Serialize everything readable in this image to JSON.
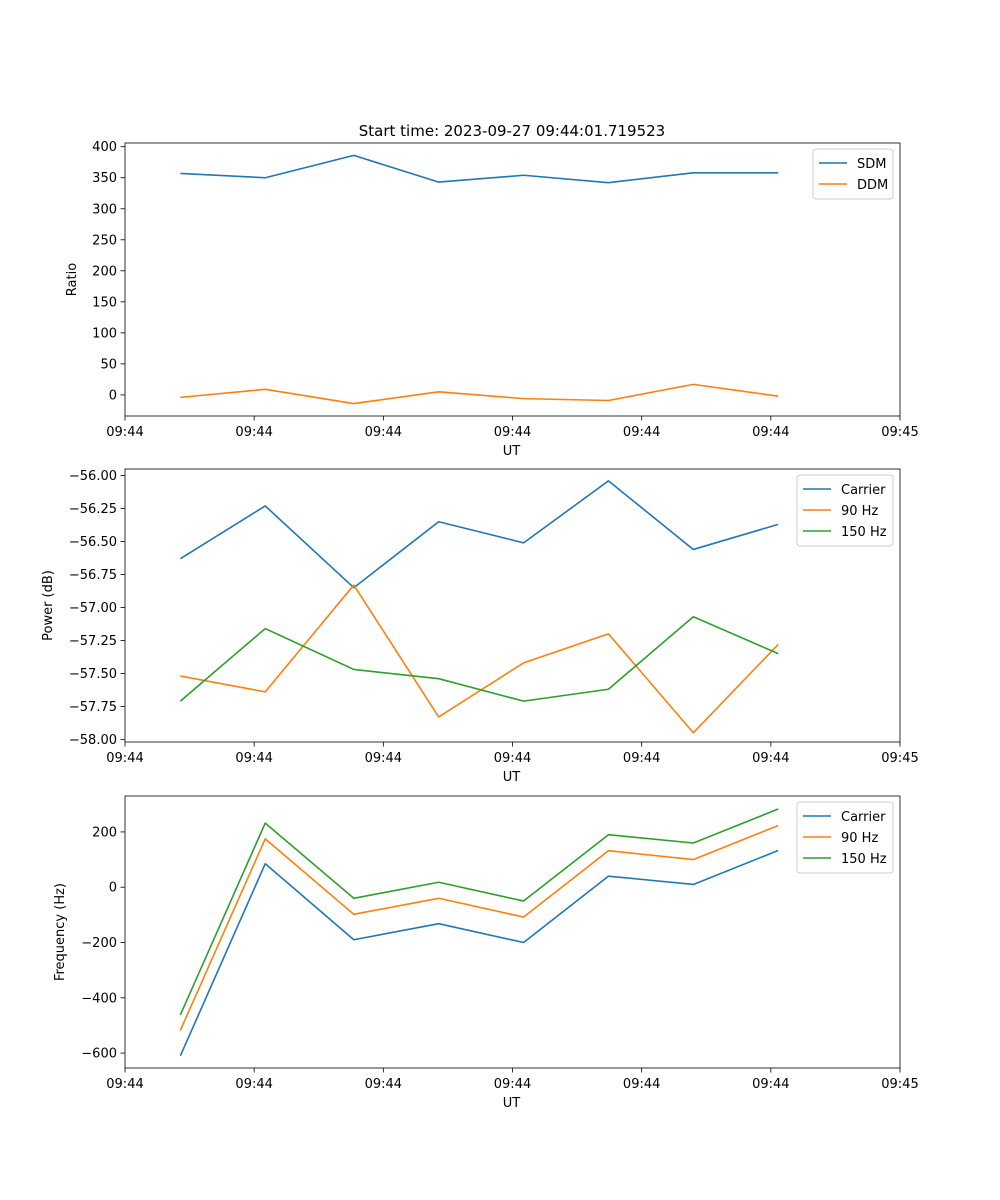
{
  "figure_title": "Start time: 2023-09-27 09:44:01.719523",
  "chart_data": [
    {
      "type": "line",
      "xlabel": "UT",
      "ylabel": "Ratio",
      "x": [
        0.75,
        1.9,
        3.1,
        4.25,
        5.4,
        6.55,
        7.7,
        8.85
      ],
      "xlim": [
        0,
        10.5
      ],
      "x_ticks": [
        0,
        1.75,
        3.5,
        5.25,
        7.0,
        8.75,
        10.5
      ],
      "x_tick_labels": [
        "09:44",
        "09:44",
        "09:44",
        "09:44",
        "09:44",
        "09:44",
        "09:45"
      ],
      "ylim": [
        -34,
        406
      ],
      "y_ticks": [
        0,
        50,
        100,
        150,
        200,
        250,
        300,
        350,
        400
      ],
      "legend_position": "top-right",
      "series": [
        {
          "name": "SDM",
          "color": "#1f77b4",
          "values": [
            357,
            350,
            386,
            343,
            354,
            342,
            358,
            358
          ]
        },
        {
          "name": "DDM",
          "color": "#ff7f0e",
          "values": [
            -4,
            9,
            -14,
            5,
            -6,
            -9,
            17,
            -2
          ]
        }
      ]
    },
    {
      "type": "line",
      "xlabel": "UT",
      "ylabel": "Power (dB)",
      "x": [
        0.75,
        1.9,
        3.1,
        4.25,
        5.4,
        6.55,
        7.7,
        8.85
      ],
      "xlim": [
        0,
        10.5
      ],
      "x_ticks": [
        0,
        1.75,
        3.5,
        5.25,
        7.0,
        8.75,
        10.5
      ],
      "x_tick_labels": [
        "09:44",
        "09:44",
        "09:44",
        "09:44",
        "09:44",
        "09:44",
        "09:45"
      ],
      "ylim": [
        -58.02,
        -55.95
      ],
      "y_ticks": [
        -58.0,
        -57.75,
        -57.5,
        -57.25,
        -57.0,
        -56.75,
        -56.5,
        -56.25,
        -56.0
      ],
      "y_tick_labels": [
        "−58.00",
        "−57.75",
        "−57.50",
        "−57.25",
        "−57.00",
        "−56.75",
        "−56.50",
        "−56.25",
        "−56.00"
      ],
      "legend_position": "top-right",
      "series": [
        {
          "name": "Carrier",
          "color": "#1f77b4",
          "values": [
            -56.63,
            -56.23,
            -56.85,
            -56.35,
            -56.51,
            -56.04,
            -56.56,
            -56.37
          ]
        },
        {
          "name": "90 Hz",
          "color": "#ff7f0e",
          "values": [
            -57.52,
            -57.64,
            -56.83,
            -57.83,
            -57.42,
            -57.2,
            -57.95,
            -57.28
          ]
        },
        {
          "name": "150 Hz",
          "color": "#2ca02c",
          "values": [
            -57.71,
            -57.16,
            -57.47,
            -57.54,
            -57.71,
            -57.62,
            -57.07,
            -57.35
          ]
        }
      ]
    },
    {
      "type": "line",
      "xlabel": "UT",
      "ylabel": "Frequency (Hz)",
      "x": [
        0.75,
        1.9,
        3.1,
        4.25,
        5.4,
        6.55,
        7.7,
        8.85
      ],
      "xlim": [
        0,
        10.5
      ],
      "x_ticks": [
        0,
        1.75,
        3.5,
        5.25,
        7.0,
        8.75,
        10.5
      ],
      "x_tick_labels": [
        "09:44",
        "09:44",
        "09:44",
        "09:44",
        "09:44",
        "09:44",
        "09:45"
      ],
      "ylim": [
        -654,
        330
      ],
      "y_ticks": [
        -600,
        -400,
        -200,
        0,
        200
      ],
      "y_tick_labels": [
        "−600",
        "−400",
        "−200",
        "0",
        "200"
      ],
      "legend_position": "top-right",
      "series": [
        {
          "name": "Carrier",
          "color": "#1f77b4",
          "values": [
            -610,
            85,
            -190,
            -132,
            -200,
            40,
            10,
            133
          ]
        },
        {
          "name": "90 Hz",
          "color": "#ff7f0e",
          "values": [
            -518,
            175,
            -98,
            -40,
            -108,
            132,
            100,
            223
          ]
        },
        {
          "name": "150 Hz",
          "color": "#2ca02c",
          "values": [
            -462,
            232,
            -40,
            18,
            -50,
            190,
            160,
            283
          ]
        }
      ]
    }
  ]
}
